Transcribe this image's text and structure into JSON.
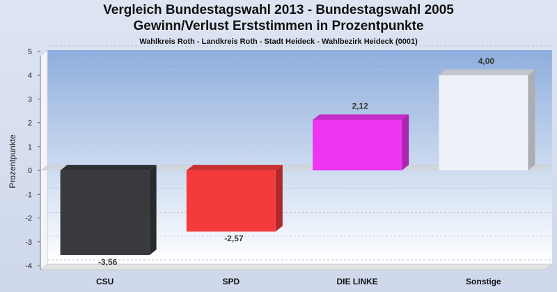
{
  "header": {
    "title_line1": "Vergleich Bundestagswahl 2013  - Bundestagswahl 2005",
    "title_line2": "Gewinn/Verlust Erststimmen in Prozentpunkte",
    "subtitle": "Wahlkreis Roth - Landkreis Roth - Stadt Heideck - Wahlbezirk Heideck (0001)"
  },
  "chart_data": {
    "type": "bar",
    "title": "Vergleich Bundestagswahl 2013  - Bundestagswahl 2005 Gewinn/Verlust Erststimmen in Prozentpunkte",
    "subtitle": "Wahlkreis Roth - Landkreis Roth - Stadt Heideck - Wahlbezirk Heideck (0001)",
    "ylabel": "Prozentpunkte",
    "xlabel": "",
    "ylim": [
      -4,
      5
    ],
    "yticks": [
      -4,
      -3,
      -2,
      -1,
      0,
      1,
      2,
      3,
      4,
      5
    ],
    "categories": [
      "CSU",
      "SPD",
      "DIE LINKE",
      "Sonstige"
    ],
    "values": [
      -3.56,
      -2.57,
      2.12,
      4.0
    ],
    "value_labels": [
      "-3,56",
      "-2,57",
      "2,12",
      "4,00"
    ],
    "colors": [
      "#383a3e",
      "#f53a3c",
      "#ee35f2",
      "#eef1f8"
    ],
    "grid": true
  }
}
